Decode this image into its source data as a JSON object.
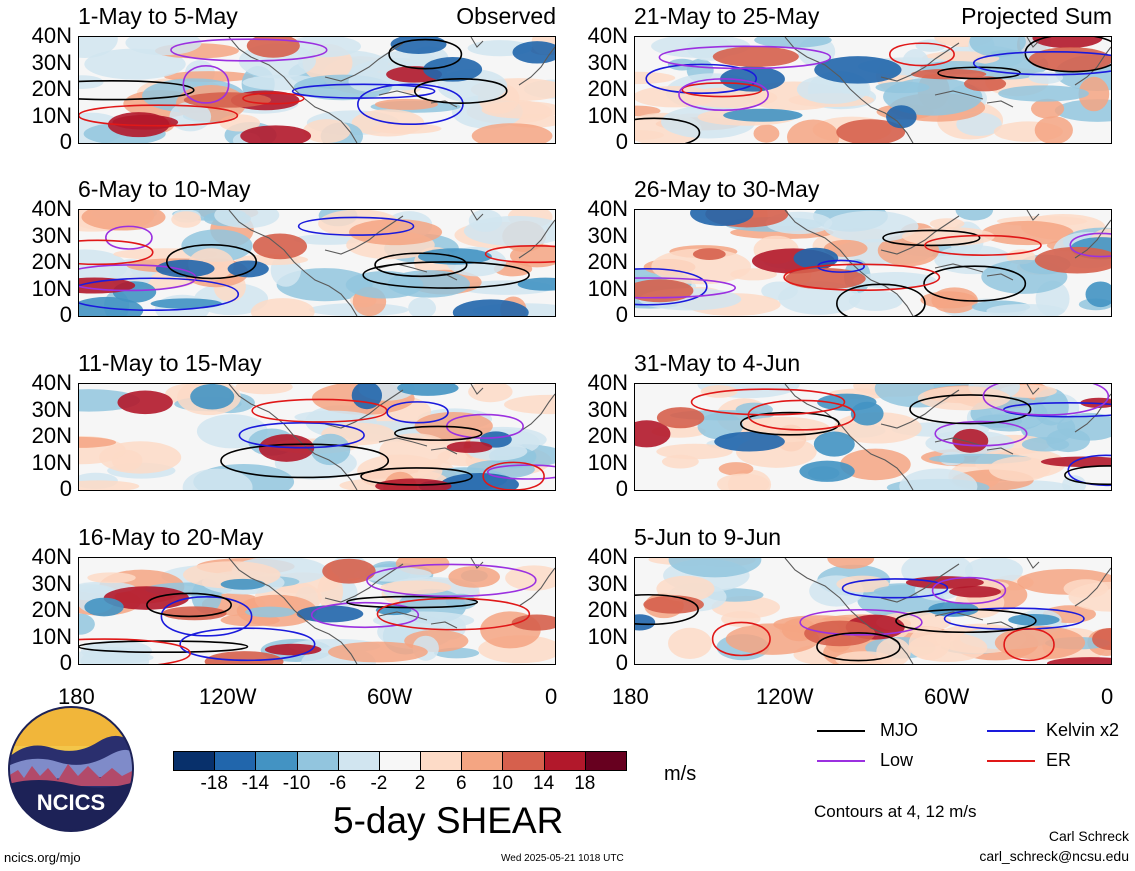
{
  "panels": [
    {
      "title": "1-May to 5-May",
      "tag": "Observed",
      "kind": "obs1"
    },
    {
      "title": "21-May to 25-May",
      "tag": "Projected Sum",
      "kind": "prj1"
    },
    {
      "title": "6-May to 10-May",
      "tag": "",
      "kind": "obs2"
    },
    {
      "title": "26-May to 30-May",
      "tag": "",
      "kind": "prj2"
    },
    {
      "title": "11-May to 15-May",
      "tag": "",
      "kind": "obs3"
    },
    {
      "title": "31-May to 4-Jun",
      "tag": "",
      "kind": "prj3"
    },
    {
      "title": "16-May to 20-May",
      "tag": "",
      "kind": "obs4"
    },
    {
      "title": "5-Jun to 9-Jun",
      "tag": "",
      "kind": "prj4"
    }
  ],
  "y_axis_labels": [
    "40N",
    "30N",
    "20N",
    "10N",
    "0"
  ],
  "x_axis_labels": [
    "180",
    "120W",
    "60W",
    "0"
  ],
  "colorbar": {
    "labels": [
      "-18",
      "-14",
      "-10",
      "-6",
      "-2",
      "2",
      "6",
      "10",
      "14",
      "18"
    ],
    "colors": [
      "#08306b",
      "#2166ac",
      "#4393c3",
      "#92c5de",
      "#d1e5f0",
      "#f7f7f7",
      "#fddbc7",
      "#f4a582",
      "#d6604d",
      "#b2182b",
      "#67001f"
    ],
    "units": "m/s",
    "title": "5-day SHEAR"
  },
  "legend": [
    {
      "label": "MJO",
      "color": "#000000"
    },
    {
      "label": "Kelvin x2",
      "color": "#1a1adc"
    },
    {
      "label": "Low",
      "color": "#9b30e0"
    },
    {
      "label": "ER",
      "color": "#e01818"
    }
  ],
  "contour_note": "Contours at 4, 12 m/s",
  "author": "Carl Schreck",
  "email": "carl_schreck@ncsu.edu",
  "website": "ncics.org/mjo",
  "timestamp": "Wed 2025-05-21 1018 UTC",
  "logo_text": "NCICS"
}
